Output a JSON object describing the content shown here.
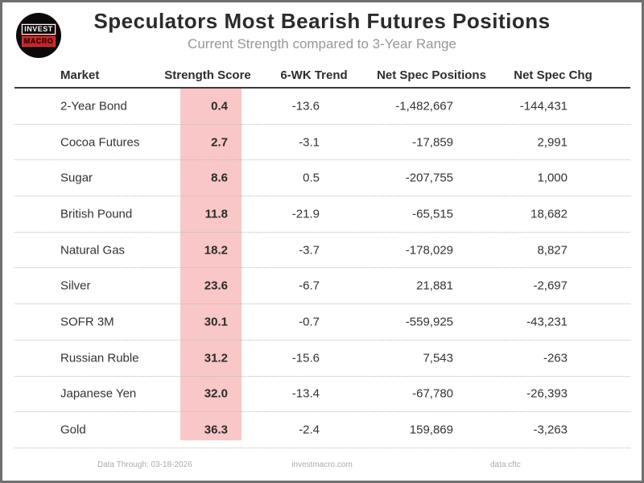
{
  "header": {
    "title": "Speculators Most Bearish Futures Positions",
    "subtitle": "Current Strength compared to 3-Year Range",
    "logo": {
      "line1": "INVEST",
      "line2": "MACRO"
    }
  },
  "table": {
    "columns": [
      "Market",
      "Strength Score",
      "6-WK Trend",
      "Net Spec Positions",
      "Net Spec Chg"
    ],
    "rows": [
      {
        "market": "2-Year Bond",
        "score": "0.4",
        "trend": "-13.6",
        "positions": "-1,482,667",
        "chg": "-144,431"
      },
      {
        "market": "Cocoa Futures",
        "score": "2.7",
        "trend": "-3.1",
        "positions": "-17,859",
        "chg": "2,991"
      },
      {
        "market": "Sugar",
        "score": "8.6",
        "trend": "0.5",
        "positions": "-207,755",
        "chg": "1,000"
      },
      {
        "market": "British Pound",
        "score": "11.8",
        "trend": "-21.9",
        "positions": "-65,515",
        "chg": "18,682"
      },
      {
        "market": "Natural Gas",
        "score": "18.2",
        "trend": "-3.7",
        "positions": "-178,029",
        "chg": "8,827"
      },
      {
        "market": "Silver",
        "score": "23.6",
        "trend": "-6.7",
        "positions": "21,881",
        "chg": "-2,697"
      },
      {
        "market": "SOFR 3M",
        "score": "30.1",
        "trend": "-0.7",
        "positions": "-559,925",
        "chg": "-43,231"
      },
      {
        "market": "Russian Ruble",
        "score": "31.2",
        "trend": "-15.6",
        "positions": "7,543",
        "chg": "-263"
      },
      {
        "market": "Japanese Yen",
        "score": "32.0",
        "trend": "-13.4",
        "positions": "-67,780",
        "chg": "-26,393"
      },
      {
        "market": "Gold",
        "score": "36.3",
        "trend": "-2.4",
        "positions": "159,869",
        "chg": "-3,263"
      }
    ]
  },
  "footer": {
    "data_through": "Data Through: 03-18-2026",
    "site": "investmacro.com",
    "source": "data:cftc"
  },
  "colors": {
    "highlight_pink": "#f9c7c7",
    "logo_red": "#c62222",
    "title_text": "#2b2b2b",
    "subtitle_text": "#979797"
  },
  "chart_data": {
    "type": "table",
    "title": "Speculators Most Bearish Futures Positions",
    "subtitle": "Current Strength compared to 3-Year Range",
    "columns": [
      "Market",
      "Strength Score",
      "6-WK Trend",
      "Net Spec Positions",
      "Net Spec Chg"
    ],
    "rows": [
      [
        "2-Year Bond",
        0.4,
        -13.6,
        -1482667,
        -144431
      ],
      [
        "Cocoa Futures",
        2.7,
        -3.1,
        -17859,
        2991
      ],
      [
        "Sugar",
        8.6,
        0.5,
        -207755,
        1000
      ],
      [
        "British Pound",
        11.8,
        -21.9,
        -65515,
        18682
      ],
      [
        "Natural Gas",
        18.2,
        -3.7,
        -178029,
        8827
      ],
      [
        "Silver",
        23.6,
        -6.7,
        21881,
        -2697
      ],
      [
        "SOFR 3M",
        30.1,
        -0.7,
        -559925,
        -43231
      ],
      [
        "Russian Ruble",
        31.2,
        -15.6,
        7543,
        -263
      ],
      [
        "Japanese Yen",
        32.0,
        -13.4,
        -67780,
        -26393
      ],
      [
        "Gold",
        36.3,
        -2.4,
        159869,
        -3263
      ]
    ],
    "highlighted_column": "Strength Score",
    "layout": {
      "grid": "dotted-row-separators",
      "header_rule": "solid"
    }
  }
}
